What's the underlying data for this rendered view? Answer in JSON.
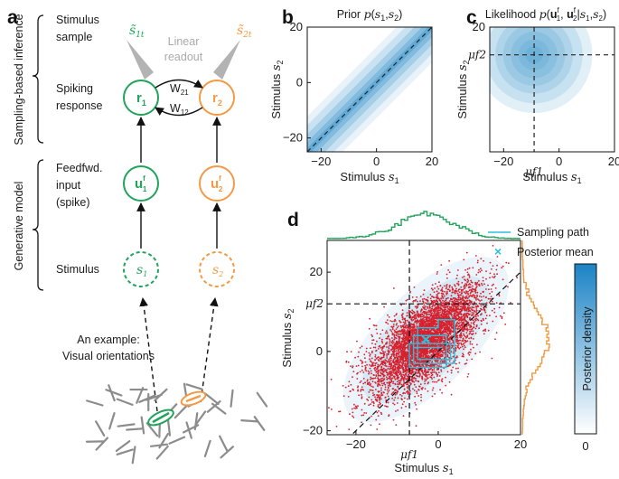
{
  "panels": {
    "a": "a",
    "b": "b",
    "c": "c",
    "d": "d"
  },
  "panel_a": {
    "bracket_top": "Sampling-based inference",
    "bracket_bottom": "Generative model",
    "rows": {
      "stimulus_sample": [
        "Stimulus",
        "sample"
      ],
      "spiking_response": [
        "Spiking",
        "response"
      ],
      "feedfwd_input": [
        "Feedfwd.",
        "input",
        "(spike)"
      ],
      "stimulus": "Stimulus"
    },
    "s_tilde_1": "s̃",
    "s_tilde_1_sub": "1t",
    "s_tilde_2": "s̃",
    "s_tilde_2_sub": "2t",
    "readout": [
      "Linear",
      "readout"
    ],
    "r1": "r",
    "r1_sub": "1",
    "r2": "r",
    "r2_sub": "2",
    "w21": "W",
    "w21_sub": "21",
    "w12": "W",
    "w12_sub": "12",
    "u1": "u",
    "u1_sup": "f",
    "u1_sub": "1",
    "u2": "u",
    "u2_sup": "f",
    "u2_sub": "2",
    "s1": "s",
    "s1_sub": "1",
    "s2": "s",
    "s2_sub": "2",
    "example": [
      "An example:",
      "Visual orientations"
    ],
    "colors": {
      "neuron1": "#21a35c",
      "neuron2": "#f29a45",
      "readout": "#b3b3b3"
    }
  },
  "chart_data": [
    {
      "panel": "b",
      "type": "heatmap",
      "title": "Prior p(s1,s2)",
      "xlabel": "Stimulus s1",
      "ylabel": "Stimulus s2",
      "xlim": [
        -25,
        20
      ],
      "ylim": [
        -25,
        20
      ],
      "xticks": [
        -20,
        0,
        20
      ],
      "yticks": [
        -20,
        0,
        20
      ],
      "distribution": {
        "kind": "diagonal_band",
        "slope": 1,
        "width_sd": 4
      },
      "dashed_line": {
        "slope": 1,
        "intercept": 0
      }
    },
    {
      "panel": "c",
      "type": "heatmap",
      "title": "Likelihood p(u1f, u2f|s1,s2)",
      "xlabel": "Stimulus s1",
      "ylabel": "Stimulus s2",
      "xlim": [
        -25,
        20
      ],
      "ylim": [
        -25,
        20
      ],
      "xticks": [
        -20,
        0,
        20
      ],
      "yticks": [
        20
      ],
      "x_marker_label": "μf1",
      "y_marker_label": "μf2",
      "distribution": {
        "kind": "isotropic_gaussian",
        "mean": [
          -9,
          10
        ],
        "sd": 7
      }
    },
    {
      "panel": "d",
      "type": "scatter",
      "xlabel": "Stimulus s1",
      "ylabel": "Stimulus s2",
      "xlim": [
        -27,
        20
      ],
      "ylim": [
        -21,
        28
      ],
      "xticks": [
        -20,
        0,
        20
      ],
      "yticks": [
        -20,
        0,
        20
      ],
      "x_marker": {
        "value": -7,
        "label": "μf1"
      },
      "y_marker": {
        "value": 12,
        "label": "μf2"
      },
      "posterior_mean": [
        -3,
        3
      ],
      "posterior_cov": [
        [
          45,
          30
        ],
        [
          30,
          45
        ]
      ],
      "n_samples": 5000,
      "legend": [
        "Sampling path",
        "Posterior mean"
      ],
      "legend_position": "top-right",
      "sampling_path": [
        [
          -6,
          -2
        ],
        [
          -6,
          4
        ],
        [
          2,
          4
        ],
        [
          2,
          -4
        ],
        [
          -7,
          -4
        ],
        [
          -7,
          2
        ],
        [
          3,
          2
        ],
        [
          3,
          -2
        ],
        [
          -5,
          -2
        ],
        [
          -5,
          6
        ],
        [
          0,
          6
        ],
        [
          0,
          8
        ],
        [
          4,
          8
        ],
        [
          4,
          -3
        ],
        [
          -6,
          -3
        ],
        [
          -6,
          1
        ],
        [
          1,
          1
        ]
      ],
      "colorbar": {
        "label": "Posterior density",
        "min_label": "0"
      },
      "colors": {
        "samples": "#d8202c",
        "path": "#2cbfdc",
        "marginal_s1": "#21a35c",
        "marginal_s2": "#f29a45",
        "density": "#1b83c5"
      }
    }
  ]
}
